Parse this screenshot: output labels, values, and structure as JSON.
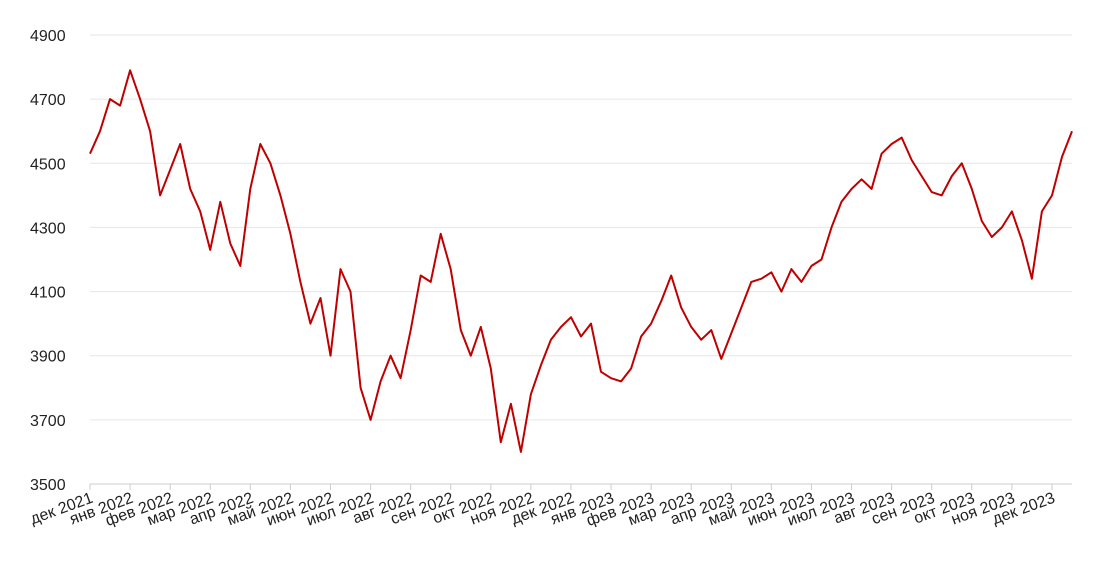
{
  "chart_data": {
    "type": "line",
    "x": [
      0,
      0.25,
      0.5,
      0.75,
      1,
      1.25,
      1.5,
      1.75,
      2,
      2.25,
      2.5,
      2.75,
      3,
      3.25,
      3.5,
      3.75,
      4,
      4.25,
      4.5,
      4.75,
      5,
      5.25,
      5.5,
      5.75,
      6,
      6.25,
      6.5,
      6.75,
      7,
      7.25,
      7.5,
      7.75,
      8,
      8.25,
      8.5,
      8.75,
      9,
      9.25,
      9.5,
      9.75,
      10,
      10.25,
      10.5,
      10.75,
      11,
      11.25,
      11.5,
      11.75,
      12,
      12.25,
      12.5,
      12.75,
      13,
      13.25,
      13.5,
      13.75,
      14,
      14.25,
      14.5,
      14.75,
      15,
      15.25,
      15.5,
      15.75,
      16,
      16.25,
      16.5,
      16.75,
      17,
      17.25,
      17.5,
      17.75,
      18,
      18.25,
      18.5,
      18.75,
      19,
      19.25,
      19.5,
      19.75,
      20,
      20.25,
      20.5,
      20.75,
      21,
      21.25,
      21.5,
      21.75,
      22,
      22.25,
      22.5,
      22.75,
      23,
      23.25,
      23.5,
      23.75,
      24,
      24.25,
      24.5
    ],
    "series": [
      {
        "color": "#c00000",
        "values": [
          4530,
          4600,
          4700,
          4680,
          4790,
          4700,
          4600,
          4400,
          4480,
          4560,
          4420,
          4350,
          4230,
          4380,
          4250,
          4180,
          4420,
          4560,
          4500,
          4400,
          4280,
          4130,
          4000,
          4080,
          3900,
          4170,
          4100,
          3800,
          3700,
          3820,
          3900,
          3830,
          3980,
          4150,
          4130,
          4280,
          4170,
          3980,
          3900,
          3990,
          3860,
          3630,
          3750,
          3600,
          3780,
          3870,
          3950,
          3990,
          4020,
          3960,
          4000,
          3850,
          3830,
          3820,
          3860,
          3960,
          4000,
          4070,
          4150,
          4050,
          3990,
          3950,
          3980,
          3890,
          3970,
          4050,
          4130,
          4140,
          4160,
          4100,
          4170,
          4130,
          4180,
          4200,
          4300,
          4380,
          4420,
          4450,
          4420,
          4530,
          4560,
          4580,
          4510,
          4460,
          4410,
          4400,
          4460,
          4500,
          4420,
          4320,
          4270,
          4300,
          4350,
          4260,
          4140,
          4350,
          4400,
          4520,
          4600
        ]
      }
    ],
    "xlim": [
      0,
      24.5
    ],
    "xticks": [
      {
        "value": 0,
        "label": "дек 2021"
      },
      {
        "value": 1,
        "label": "янв 2022"
      },
      {
        "value": 2,
        "label": "фев 2022"
      },
      {
        "value": 3,
        "label": "мар 2022"
      },
      {
        "value": 4,
        "label": "апр 2022"
      },
      {
        "value": 5,
        "label": "май 2022"
      },
      {
        "value": 6,
        "label": "июн 2022"
      },
      {
        "value": 7,
        "label": "июл 2022"
      },
      {
        "value": 8,
        "label": "авг 2022"
      },
      {
        "value": 9,
        "label": "сен 2022"
      },
      {
        "value": 10,
        "label": "окт 2022"
      },
      {
        "value": 11,
        "label": "ноя 2022"
      },
      {
        "value": 12,
        "label": "дек 2022"
      },
      {
        "value": 13,
        "label": "янв 2023"
      },
      {
        "value": 14,
        "label": "фев 2023"
      },
      {
        "value": 15,
        "label": "мар 2023"
      },
      {
        "value": 16,
        "label": "апр 2023"
      },
      {
        "value": 17,
        "label": "май 2023"
      },
      {
        "value": 18,
        "label": "июн 2023"
      },
      {
        "value": 19,
        "label": "июл 2023"
      },
      {
        "value": 20,
        "label": "авг 2023"
      },
      {
        "value": 21,
        "label": "сен 2023"
      },
      {
        "value": 22,
        "label": "окт 2023"
      },
      {
        "value": 23,
        "label": "ноя 2023"
      },
      {
        "value": 24,
        "label": "дек 2023"
      }
    ],
    "ylim": [
      3500,
      4900
    ],
    "yticks": [
      3500,
      3700,
      3900,
      4100,
      4300,
      4500,
      4700,
      4900
    ],
    "grid": true
  }
}
